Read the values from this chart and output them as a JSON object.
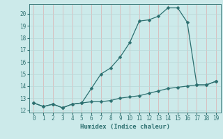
{
  "xlabel": "Humidex (Indice chaleur)",
  "line_color": "#2d7070",
  "bg_color": "#cceaea",
  "hgrid_color": "#b8d8d8",
  "vgrid_color": "#ddb0b0",
  "xlim": [
    -0.5,
    19.5
  ],
  "ylim": [
    11.8,
    20.8
  ],
  "xticks": [
    0,
    1,
    2,
    3,
    4,
    5,
    6,
    7,
    8,
    9,
    10,
    11,
    12,
    13,
    14,
    15,
    16,
    17,
    18,
    19
  ],
  "yticks": [
    12,
    13,
    14,
    15,
    16,
    17,
    18,
    19,
    20
  ],
  "upper_x": [
    0,
    1,
    2,
    3,
    4,
    5,
    6,
    7,
    8,
    9,
    10,
    11,
    12,
    13,
    14,
    15,
    16,
    17,
    18,
    19
  ],
  "upper_y": [
    12.6,
    12.3,
    12.5,
    12.2,
    12.5,
    12.6,
    13.8,
    15.0,
    15.5,
    16.4,
    17.6,
    19.4,
    19.5,
    19.8,
    20.5,
    20.5,
    19.3,
    14.1,
    14.1,
    14.4
  ],
  "lower_x": [
    0,
    1,
    2,
    3,
    4,
    5,
    6,
    7,
    8,
    9,
    10,
    11,
    12,
    13,
    14,
    15,
    16,
    17,
    18,
    19
  ],
  "lower_y": [
    12.6,
    12.3,
    12.5,
    12.2,
    12.5,
    12.6,
    12.7,
    12.7,
    12.8,
    13.0,
    13.1,
    13.2,
    13.4,
    13.6,
    13.8,
    13.9,
    14.0,
    14.1,
    14.1,
    14.4
  ],
  "marker_size": 2.5,
  "linewidth": 0.9,
  "xlabel_fontsize": 6.5,
  "tick_fontsize": 5.5
}
